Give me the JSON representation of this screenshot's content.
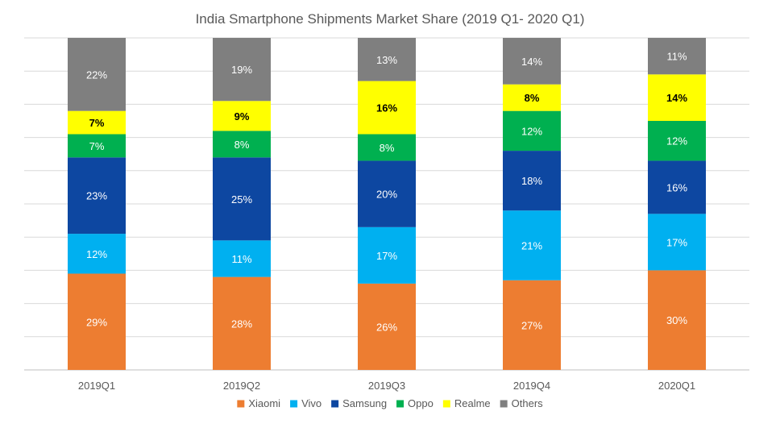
{
  "colors": {
    "Xiaomi": "#ED7D31",
    "Vivo": "#00B0F0",
    "Samsung": "#0D47A1",
    "Oppo": "#00B050",
    "Realme": "#FFFF00",
    "Others": "#7F7F7F",
    "grid": "#D9D9D9",
    "axis_text": "#595959"
  },
  "chart_data": {
    "type": "bar",
    "stacked": true,
    "title": "India Smartphone Shipments Market Share (2019 Q1- 2020 Q1)",
    "xlabel": "",
    "ylabel": "",
    "ylim": [
      0,
      100
    ],
    "grid": true,
    "legend_position": "bottom",
    "categories": [
      "2019Q1",
      "2019Q2",
      "2019Q3",
      "2019Q4",
      "2020Q1"
    ],
    "series": [
      {
        "name": "Xiaomi",
        "values": [
          29,
          28,
          26,
          27,
          30
        ],
        "labels": [
          "29%",
          "28%",
          "26%",
          "27%",
          "30%"
        ]
      },
      {
        "name": "Vivo",
        "values": [
          12,
          11,
          17,
          21,
          17
        ],
        "labels": [
          "12%",
          "11%",
          "17%",
          "21%",
          "17%"
        ]
      },
      {
        "name": "Samsung",
        "values": [
          23,
          25,
          20,
          18,
          16
        ],
        "labels": [
          "23%",
          "25%",
          "20%",
          "18%",
          "16%"
        ]
      },
      {
        "name": "Oppo",
        "values": [
          7,
          8,
          8,
          12,
          12
        ],
        "labels": [
          "7%",
          "8%",
          "8%",
          "12%",
          "12%"
        ]
      },
      {
        "name": "Realme",
        "values": [
          7,
          9,
          16,
          8,
          14
        ],
        "labels": [
          "7%",
          "9%",
          "16%",
          "8%",
          "14%"
        ]
      },
      {
        "name": "Others",
        "values": [
          22,
          19,
          13,
          14,
          11
        ],
        "labels": [
          "22%",
          "19%",
          "13%",
          "14%",
          "11%"
        ]
      }
    ]
  }
}
